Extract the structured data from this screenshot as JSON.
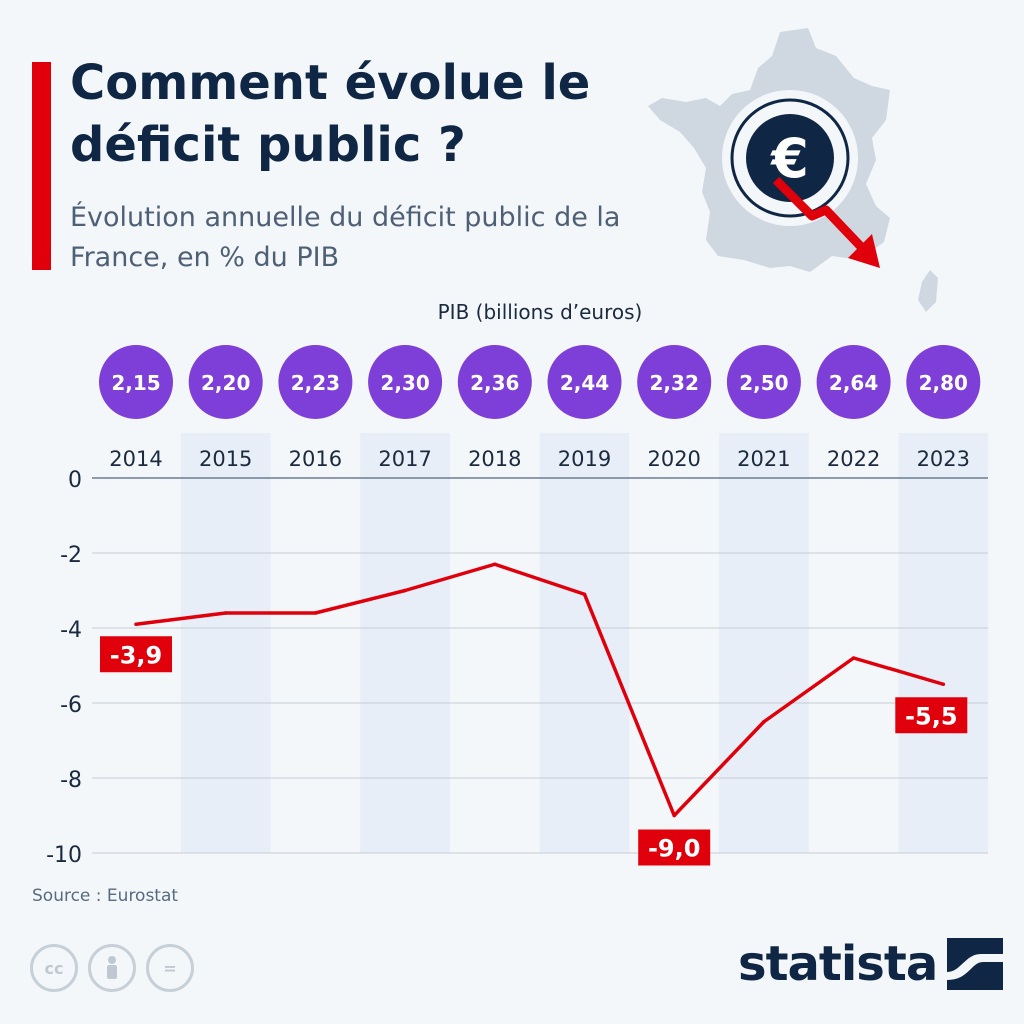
{
  "header": {
    "title": "Comment évolue le déficit public ?",
    "subtitle": "Évolution annuelle du déficit public de la France, en % du PIB",
    "illustration_icon": "france-map-euro-down-icon",
    "currency_symbol": "€"
  },
  "pib": {
    "title": "PIB (billions d’euros)",
    "values": [
      "2,15",
      "2,20",
      "2,23",
      "2,30",
      "2,36",
      "2,44",
      "2,32",
      "2,50",
      "2,64",
      "2,80"
    ]
  },
  "chart_data": {
    "type": "line",
    "categories": [
      "2014",
      "2015",
      "2016",
      "2017",
      "2018",
      "2019",
      "2020",
      "2021",
      "2022",
      "2023"
    ],
    "series": [
      {
        "values": [
          -3.9,
          -3.6,
          -3.6,
          -3.0,
          -2.3,
          -3.1,
          -9.0,
          -6.5,
          -4.8,
          -5.5
        ]
      }
    ],
    "data_labels": [
      {
        "category": "2014",
        "text": "-3,9"
      },
      {
        "category": "2020",
        "text": "-9,0"
      },
      {
        "category": "2023",
        "text": "-5,5"
      }
    ],
    "yticks": [
      0,
      -2,
      -4,
      -6,
      -8,
      -10
    ],
    "ytick_labels": [
      "0",
      "-2",
      "-4",
      "-6",
      "-8",
      "-10"
    ],
    "ylim": [
      -10,
      0
    ],
    "grid": true,
    "colors": {
      "line": "#e0000b",
      "label_bg": "#e0000b",
      "bubble": "#7d3fd8",
      "band": "#e8eef7",
      "grid": "#c3ccd6",
      "axis_text": "#1a2b3f"
    }
  },
  "footer": {
    "source": "Source : Eurostat",
    "brand": "statista",
    "license_icons": [
      "cc-icon",
      "attribution-icon",
      "no-derivatives-icon"
    ],
    "license_glyphs": [
      "cc",
      "="
    ]
  }
}
